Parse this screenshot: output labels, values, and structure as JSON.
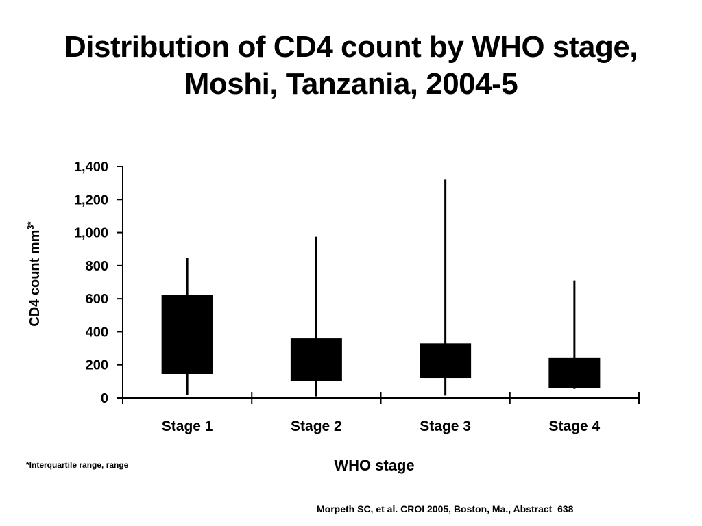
{
  "slide": {
    "title_line1": "Distribution of CD4 count by WHO stage,",
    "title_line2": "Moshi, Tanzania, 2004-5",
    "footnote": "*Interquartile range, range",
    "citation": "Morpeth SC, et al. CROI 2005, Boston, Ma., Abstract  638"
  },
  "chart_data": {
    "type": "boxplot",
    "title": "Distribution of CD4 count by WHO stage, Moshi, Tanzania, 2004-5",
    "xlabel": "WHO stage",
    "ylabel_main": "CD4 count mm",
    "ylabel_superscript": "3*",
    "ylim": [
      0,
      1400
    ],
    "yticks": [
      0,
      200,
      400,
      600,
      800,
      1000,
      1200,
      1400
    ],
    "ytick_labels": [
      "0",
      "200",
      "400",
      "600",
      "800",
      "1,000",
      "1,200",
      "1,400"
    ],
    "categories": [
      "Stage 1",
      "Stage 2",
      "Stage 3",
      "Stage 4"
    ],
    "boxes": [
      {
        "category": "Stage 1",
        "min": 20,
        "q1": 145,
        "q3": 625,
        "max": 845
      },
      {
        "category": "Stage 2",
        "min": 10,
        "q1": 100,
        "q3": 360,
        "max": 975
      },
      {
        "category": "Stage 3",
        "min": 15,
        "q1": 120,
        "q3": 330,
        "max": 1320
      },
      {
        "category": "Stage 4",
        "min": 55,
        "q1": 60,
        "q3": 245,
        "max": 710
      }
    ],
    "grid": false,
    "legend": "none",
    "colors": {
      "box": "#000000",
      "axis": "#000000"
    }
  }
}
